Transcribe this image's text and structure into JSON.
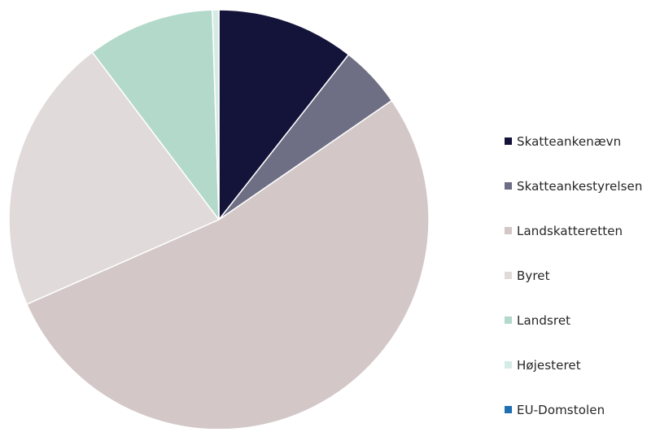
{
  "chart_data": {
    "type": "pie",
    "title": "",
    "legend_position": "right",
    "start_angle_deg": 0,
    "direction": "clockwise",
    "slices": [
      {
        "label": "Skatteankenævn",
        "value": 10.6,
        "color": "#14143a"
      },
      {
        "label": "Skatteankestyrelsen",
        "value": 4.8,
        "color": "#6e6e85"
      },
      {
        "label": "Landskatteretten",
        "value": 53.0,
        "color": "#d3c7c7"
      },
      {
        "label": "Byret",
        "value": 21.3,
        "color": "#e1dada"
      },
      {
        "label": "Landsret",
        "value": 9.8,
        "color": "#b2d9ca"
      },
      {
        "label": "Højesteret",
        "value": 0.5,
        "color": "#d5ebe5"
      },
      {
        "label": "EU-Domstolen",
        "value": 0.0,
        "color": "#1f6fb2"
      }
    ]
  }
}
